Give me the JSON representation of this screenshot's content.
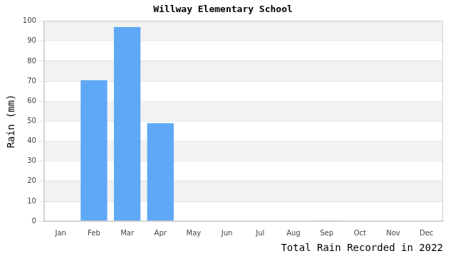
{
  "chart_data": {
    "type": "bar",
    "title": "Willway Elementary School",
    "y_label": "Rain (mm)",
    "x_label": "Total Rain Recorded in 2022",
    "categories": [
      "Jan",
      "Feb",
      "Mar",
      "Apr",
      "May",
      "Jun",
      "Jul",
      "Aug",
      "Sep",
      "Oct",
      "Nov",
      "Dec"
    ],
    "values": [
      0,
      70.5,
      97,
      49,
      0,
      0,
      0,
      0,
      0.4,
      0,
      0,
      0
    ],
    "color": "#5fa8f6",
    "ylim": [
      0,
      100
    ],
    "yticks": [
      0,
      10,
      20,
      30,
      40,
      50,
      60,
      70,
      80,
      90,
      100
    ],
    "grid": true
  }
}
